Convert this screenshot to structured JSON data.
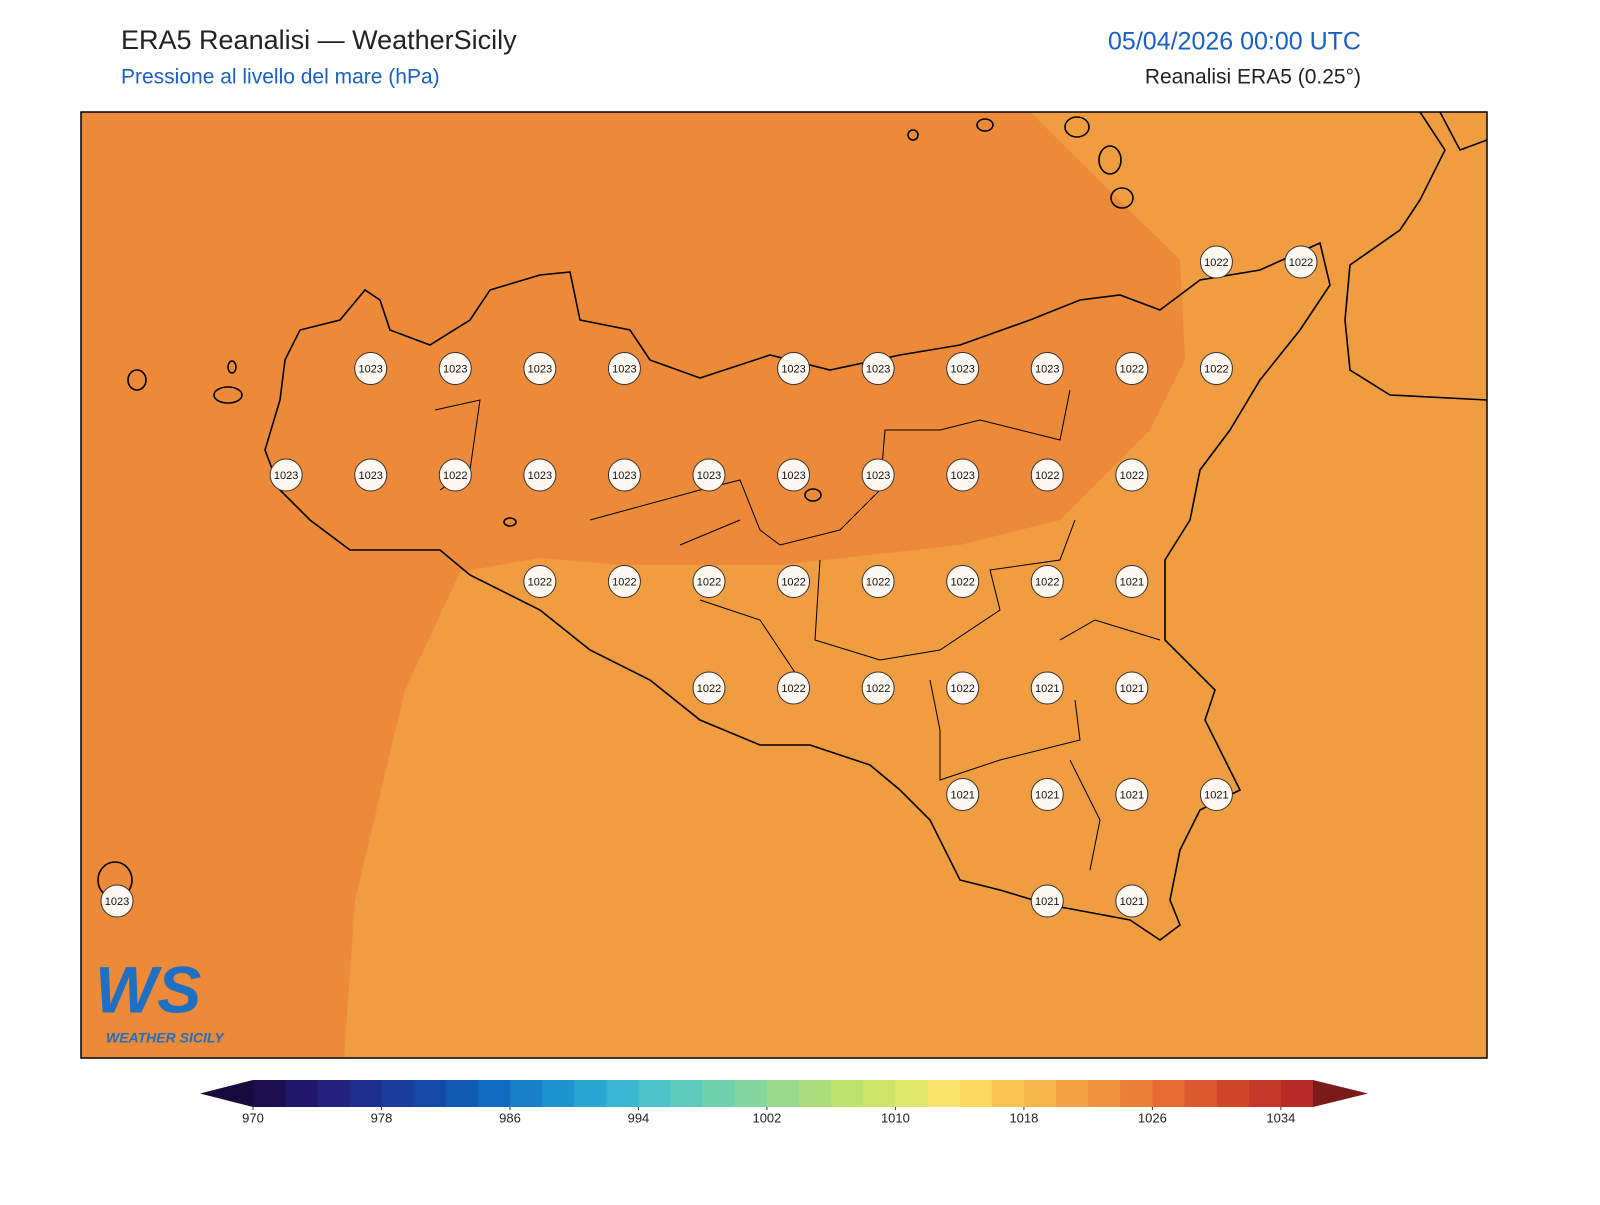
{
  "header": {
    "title": "ERA5 Reanalisi — WeatherSicily",
    "subtitle": "Pressione al livello del mare (hPa)",
    "datetime": "05/04/2026 00:00 UTC",
    "source": "Reanalisi ERA5 (0.25°)"
  },
  "stations": {
    "rows": [
      [
        null,
        null,
        null,
        null,
        null,
        null,
        null,
        null,
        null,
        null,
        null,
        null,
        null,
        1022,
        1022
      ],
      [
        null,
        null,
        null,
        1023,
        1023,
        1023,
        1023,
        null,
        1023,
        1023,
        1023,
        1023,
        1022,
        1022,
        null
      ],
      [
        null,
        null,
        1023,
        1023,
        1022,
        1023,
        1023,
        1023,
        1023,
        1023,
        1023,
        1022,
        1022,
        null,
        null
      ],
      [
        null,
        null,
        null,
        null,
        null,
        1022,
        1022,
        1022,
        1022,
        1022,
        1022,
        1022,
        1021,
        null,
        null
      ],
      [
        null,
        null,
        null,
        null,
        null,
        null,
        null,
        1022,
        1022,
        1022,
        1022,
        1021,
        1021,
        null,
        null
      ],
      [
        null,
        null,
        null,
        null,
        null,
        null,
        null,
        null,
        null,
        null,
        1021,
        1021,
        1021,
        1021,
        null
      ],
      [
        1023,
        null,
        null,
        null,
        null,
        null,
        null,
        null,
        null,
        null,
        null,
        1021,
        1021,
        null,
        null
      ]
    ]
  },
  "field": {
    "colors": [
      "#ec8a3a",
      "#f09c40"
    ]
  },
  "colorbar": {
    "range": [
      970,
      1036
    ],
    "ticks": [
      970,
      978,
      986,
      994,
      1002,
      1010,
      1018,
      1026,
      1034
    ],
    "colors": [
      "#1c0f4f",
      "#21176a",
      "#232080",
      "#1f2d8f",
      "#1a3c9c",
      "#1549a8",
      "#115ab4",
      "#0e6bc0",
      "#1680c8",
      "#1f93cf",
      "#2aa6d2",
      "#39b7d0",
      "#4cc3c8",
      "#5dcbbc",
      "#70d1ae",
      "#84d69e",
      "#97da8c",
      "#aadd7a",
      "#bde26c",
      "#cfe56a",
      "#e0e86b",
      "#f7e46a",
      "#fcd85f",
      "#f9c653",
      "#f6b449",
      "#f3a341",
      "#ef923b",
      "#eb8036",
      "#e46c31",
      "#dc592d",
      "#d14629",
      "#c53726",
      "#b82a25"
    ],
    "under": "#160c3c",
    "over": "#7a1a1a"
  },
  "logo": {
    "mark": "WS",
    "text": "WEATHER SICILY"
  }
}
